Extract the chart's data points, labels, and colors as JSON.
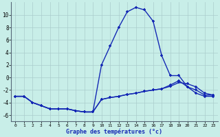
{
  "title": "Graphe des températures (°c)",
  "bg_color": "#c8eee8",
  "grid_color": "#aacccc",
  "line_color": "#1428b4",
  "x_labels": [
    "0",
    "1",
    "2",
    "3",
    "4",
    "5",
    "6",
    "7",
    "8",
    "9",
    "10",
    "11",
    "12",
    "13",
    "14",
    "15",
    "16",
    "17",
    "18",
    "19",
    "20",
    "21",
    "22",
    "23"
  ],
  "ylim": [
    -7,
    12
  ],
  "yticks": [
    -6,
    -4,
    -2,
    0,
    2,
    4,
    6,
    8,
    10
  ],
  "line1_y": [
    -3.0,
    -3.0,
    -4.0,
    -4.5,
    -5.0,
    -5.0,
    -5.0,
    -5.3,
    -5.5,
    -5.5,
    2.0,
    5.0,
    8.0,
    10.5,
    11.2,
    10.8,
    9.0,
    3.5,
    0.3,
    0.3,
    -1.5,
    -2.0,
    -2.8,
    -2.8
  ],
  "line2_y": [
    -3.0,
    -3.0,
    -4.0,
    -4.5,
    -5.0,
    -5.0,
    -5.0,
    -5.3,
    -5.5,
    -5.5,
    -3.5,
    -3.2,
    -3.0,
    -2.7,
    -2.5,
    -2.2,
    -2.0,
    -1.8,
    -1.4,
    -0.8,
    -1.0,
    -1.5,
    -2.5,
    -2.8
  ],
  "line3_y": [
    -3.0,
    -3.0,
    -4.0,
    -4.5,
    -5.0,
    -5.0,
    -5.0,
    -5.3,
    -5.5,
    -5.5,
    -3.5,
    -3.2,
    -3.0,
    -2.7,
    -2.5,
    -2.2,
    -2.0,
    -1.8,
    -1.2,
    -0.5,
    -1.5,
    -2.5,
    -3.0,
    -3.0
  ]
}
